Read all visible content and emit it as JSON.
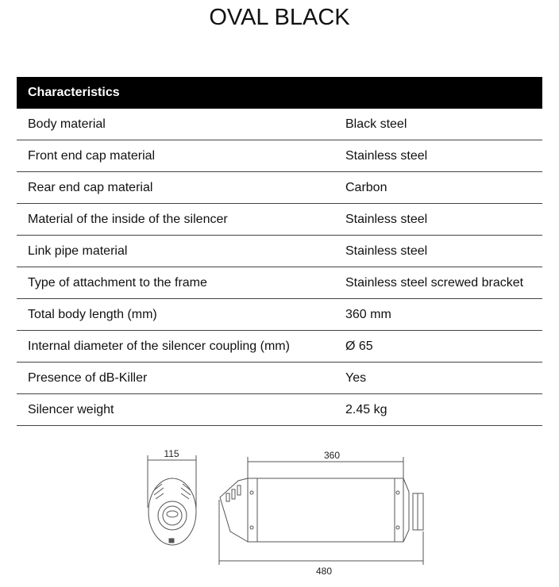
{
  "title": "OVAL BLACK",
  "table": {
    "header": "Characteristics",
    "rows": [
      {
        "label": "Body material",
        "value": "Black steel"
      },
      {
        "label": "Front end cap material",
        "value": "Stainless steel"
      },
      {
        "label": "Rear end cap material",
        "value": "Carbon"
      },
      {
        "label": "Material of the inside of the silencer",
        "value": "Stainless steel"
      },
      {
        "label": "Link pipe material",
        "value": "Stainless steel"
      },
      {
        "label": "Type of attachment to the frame",
        "value": "Stainless steel screwed bracket"
      },
      {
        "label": "Total body length (mm)",
        "value": "360 mm"
      },
      {
        "label": "Internal diameter of the silencer coupling (mm)",
        "value": "Ø 65"
      },
      {
        "label": "Presence of dB-Killer",
        "value": "Yes"
      },
      {
        "label": "Silencer weight",
        "value": "2.45 kg"
      }
    ]
  },
  "drawing": {
    "width_dim": "115",
    "body_dim": "360",
    "total_dim": "480"
  }
}
